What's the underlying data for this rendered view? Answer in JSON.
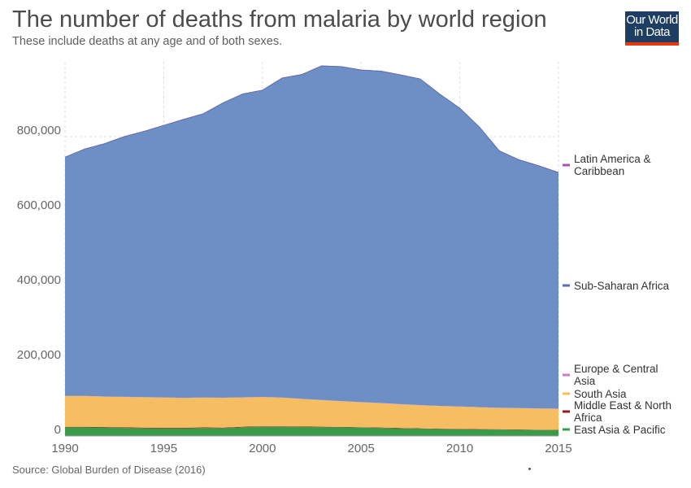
{
  "header": {
    "title": "The number of deaths from malaria by world region",
    "subtitle": "These include deaths at any age and of both sexes.",
    "logo_line1": "Our World",
    "logo_line2": "in Data"
  },
  "footer": {
    "source": "Source: Global Burden of Disease (2016)"
  },
  "colors": {
    "east_asia_pacific": "#3a9c4b",
    "middle_east_north_africa": "#8e1c1c",
    "south_asia": "#f7bd63",
    "europe_central_asia": "#c97ec6",
    "sub_saharan_africa": "#6e8fc3",
    "sub_saharan_africa_line": "#5d6eb0",
    "latin_america_caribbean": "#9b59b6",
    "grid": "#dddddd",
    "axis_text": "#666666",
    "logo_bg": "#1d3d63",
    "logo_bar": "#e63912"
  },
  "chart_data": {
    "type": "area",
    "stacked": true,
    "title": "The number of deaths from malaria by world region",
    "subtitle": "These include deaths at any age and of both sexes.",
    "xlabel": "",
    "ylabel": "",
    "xlim": [
      1990,
      2015
    ],
    "ylim": [
      0,
      1000000
    ],
    "grid": true,
    "legend_placement": "right",
    "x": [
      1990,
      1991,
      1992,
      1993,
      1994,
      1995,
      1996,
      1997,
      1998,
      1999,
      2000,
      2001,
      2002,
      2003,
      2004,
      2005,
      2006,
      2007,
      2008,
      2009,
      2010,
      2011,
      2012,
      2013,
      2014,
      2015
    ],
    "x_ticks": [
      1990,
      1995,
      2000,
      2005,
      2010,
      2015
    ],
    "x_tick_labels": [
      "1990",
      "1995",
      "2000",
      "2005",
      "2010",
      "2015"
    ],
    "y_ticks": [
      0,
      200000,
      400000,
      600000,
      800000
    ],
    "y_tick_labels": [
      "0",
      "200,000",
      "400,000",
      "600,000",
      "800,000"
    ],
    "series": [
      {
        "name": "East Asia & Pacific",
        "values": [
          23000,
          23000,
          22500,
          21500,
          21000,
          20500,
          20500,
          21500,
          21000,
          23500,
          24500,
          24500,
          24000,
          23500,
          23000,
          22500,
          21500,
          20500,
          19500,
          18500,
          18000,
          17500,
          17000,
          16500,
          16000,
          15500
        ]
      },
      {
        "name": "Middle East & North Africa",
        "values": [
          1500,
          1500,
          1500,
          1500,
          1400,
          1400,
          1400,
          1300,
          1300,
          1300,
          1300,
          1200,
          1200,
          1100,
          1100,
          1000,
          1000,
          1000,
          900,
          900,
          900,
          800,
          800,
          800,
          700,
          700
        ]
      },
      {
        "name": "South Asia",
        "values": [
          82000,
          82000,
          81000,
          81000,
          81000,
          80500,
          79500,
          79500,
          79500,
          78000,
          78000,
          76500,
          73500,
          71000,
          68500,
          66500,
          65000,
          63000,
          61500,
          60500,
          59500,
          58000,
          57000,
          57000,
          56500,
          56000
        ]
      },
      {
        "name": "Europe & Central Asia",
        "values": [
          500,
          500,
          500,
          500,
          500,
          500,
          500,
          500,
          500,
          500,
          500,
          500,
          500,
          500,
          500,
          500,
          500,
          500,
          500,
          500,
          500,
          500,
          500,
          500,
          500,
          500
        ]
      },
      {
        "name": "Sub-Saharan Africa",
        "values": [
          638000,
          660000,
          675500,
          695500,
          710100,
          727100,
          744100,
          758200,
          787700,
          810700,
          819700,
          853800,
          866800,
          892900,
          893900,
          887500,
          887000,
          880000,
          871600,
          832600,
          797100,
          748200,
          686700,
          663200,
          648300,
          631300
        ]
      },
      {
        "name": "Latin America & Caribbean",
        "values": [
          1000,
          1000,
          1000,
          1000,
          1000,
          1000,
          1000,
          1000,
          1000,
          1000,
          1000,
          1000,
          1000,
          1000,
          1000,
          1000,
          1000,
          1000,
          1000,
          1000,
          1000,
          1000,
          1000,
          1000,
          1000,
          1000
        ]
      }
    ],
    "legend_items": [
      {
        "label_lines": [
          "Latin America &",
          "Caribbean"
        ],
        "series_index": 5
      },
      {
        "label_lines": [
          "Sub-Saharan Africa"
        ],
        "series_index": 4
      },
      {
        "label_lines": [
          "Europe & Central",
          "Asia"
        ],
        "series_index": 3
      },
      {
        "label_lines": [
          "South Asia"
        ],
        "series_index": 2
      },
      {
        "label_lines": [
          "Middle East & North",
          "Africa"
        ],
        "series_index": 1
      },
      {
        "label_lines": [
          "East Asia & Pacific"
        ],
        "series_index": 0
      }
    ]
  }
}
